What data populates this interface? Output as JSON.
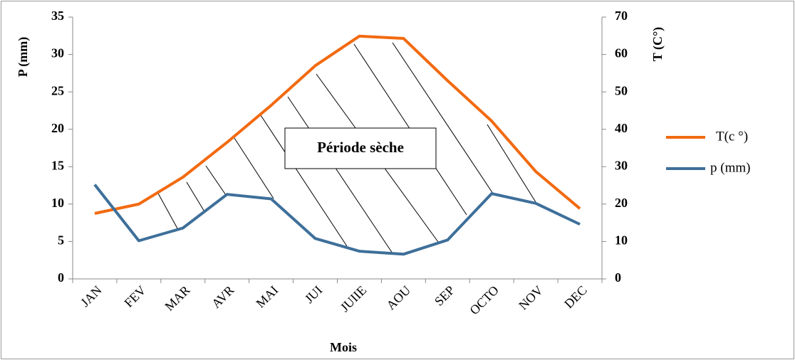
{
  "chart_data": {
    "type": "line",
    "annotation": "Période sèche",
    "xlabel": "Mois",
    "ylabel": "P (mm)",
    "y2label": "T (C°)",
    "categories": [
      "JAN",
      "FEV",
      "MAR",
      "AVR",
      "MAI",
      "JUI",
      "JUIIE",
      "AOU",
      "SEP",
      "OCTO",
      "NOV",
      "DEC"
    ],
    "series": [
      {
        "name": "T(c °)",
        "color": "#f26a10",
        "axis": "y2",
        "values": [
          17.5,
          20,
          27.2,
          36.5,
          46.4,
          57,
          64.9,
          64.3,
          53,
          42.2,
          28.7,
          18.8
        ]
      },
      {
        "name": "p (mm)",
        "color": "#3e6f9a",
        "values": [
          12.6,
          5.1,
          6.8,
          11.3,
          10.7,
          5.4,
          3.7,
          3.3,
          5.2,
          11.4,
          10.1,
          7.3
        ]
      }
    ],
    "ylim": [
      0,
      35
    ],
    "yticks": [
      0,
      5,
      10,
      15,
      20,
      25,
      30,
      35
    ],
    "y2lim": [
      0,
      70
    ],
    "y2ticks": [
      0,
      10,
      20,
      30,
      40,
      50,
      60,
      70
    ],
    "legend": "right"
  }
}
